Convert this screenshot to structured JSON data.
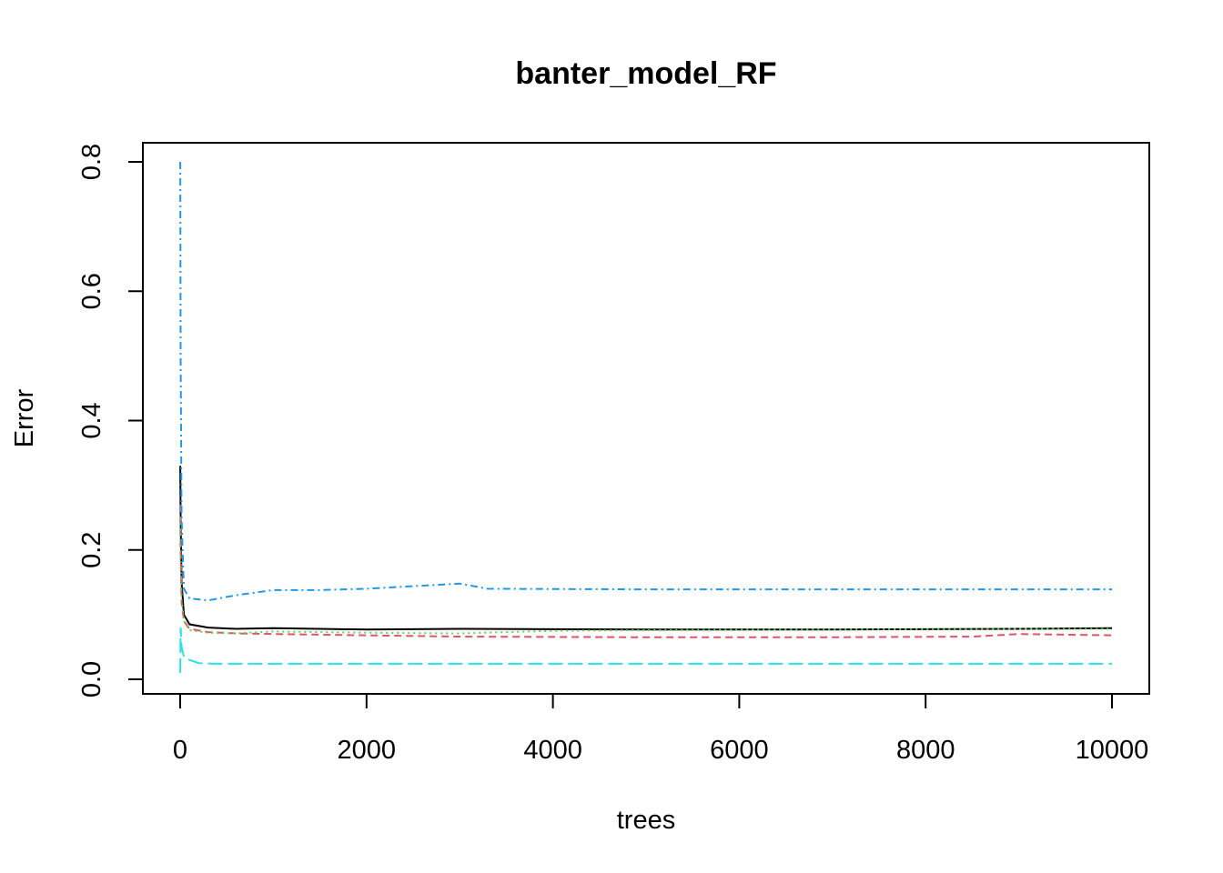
{
  "chart_data": {
    "type": "line",
    "title": "banter_model_RF",
    "xlabel": "trees",
    "ylabel": "Error",
    "xlim": [
      0,
      10000
    ],
    "ylim": [
      0,
      0.8
    ],
    "x_ticks": [
      0,
      2000,
      4000,
      6000,
      8000,
      10000
    ],
    "y_ticks": [
      0.0,
      0.2,
      0.4,
      0.6,
      0.8
    ],
    "x_tick_labels": [
      "0",
      "2000",
      "4000",
      "6000",
      "8000",
      "10000"
    ],
    "y_tick_labels": [
      "0.0",
      "0.2",
      "0.4",
      "0.6",
      "0.8"
    ],
    "grid": false,
    "legend": "none",
    "series": [
      {
        "color": "#000000",
        "dash": "",
        "points": [
          [
            1,
            0.33
          ],
          [
            5,
            0.25
          ],
          [
            15,
            0.15
          ],
          [
            40,
            0.1
          ],
          [
            100,
            0.085
          ],
          [
            300,
            0.08
          ],
          [
            600,
            0.078
          ],
          [
            1000,
            0.079
          ],
          [
            2000,
            0.077
          ],
          [
            3000,
            0.078
          ],
          [
            5000,
            0.077
          ],
          [
            7000,
            0.077
          ],
          [
            9000,
            0.078
          ],
          [
            10000,
            0.079
          ]
        ]
      },
      {
        "color": "#DF536B",
        "dash": "8,5",
        "points": [
          [
            1,
            0.27
          ],
          [
            5,
            0.2
          ],
          [
            15,
            0.12
          ],
          [
            40,
            0.09
          ],
          [
            100,
            0.078
          ],
          [
            300,
            0.073
          ],
          [
            600,
            0.071
          ],
          [
            1000,
            0.07
          ],
          [
            2000,
            0.068
          ],
          [
            3000,
            0.066
          ],
          [
            5000,
            0.065
          ],
          [
            7000,
            0.065
          ],
          [
            8500,
            0.066
          ],
          [
            9000,
            0.07
          ],
          [
            10000,
            0.068
          ]
        ]
      },
      {
        "color": "#61D04F",
        "dash": "2,4",
        "points": [
          [
            1,
            0.25
          ],
          [
            5,
            0.18
          ],
          [
            15,
            0.12
          ],
          [
            40,
            0.09
          ],
          [
            100,
            0.076
          ],
          [
            300,
            0.072
          ],
          [
            600,
            0.071
          ],
          [
            1000,
            0.074
          ],
          [
            2000,
            0.072
          ],
          [
            3000,
            0.071
          ],
          [
            4000,
            0.075
          ],
          [
            5000,
            0.076
          ],
          [
            7000,
            0.077
          ],
          [
            9000,
            0.078
          ],
          [
            10000,
            0.078
          ]
        ]
      },
      {
        "color": "#2297E6",
        "dash": "8,4,2,4",
        "points": [
          [
            1,
            0.8
          ],
          [
            5,
            0.5
          ],
          [
            15,
            0.25
          ],
          [
            40,
            0.14
          ],
          [
            100,
            0.125
          ],
          [
            300,
            0.122
          ],
          [
            600,
            0.13
          ],
          [
            1000,
            0.138
          ],
          [
            1500,
            0.138
          ],
          [
            2000,
            0.14
          ],
          [
            3000,
            0.148
          ],
          [
            3300,
            0.14
          ],
          [
            5000,
            0.139
          ],
          [
            7000,
            0.139
          ],
          [
            10000,
            0.139
          ]
        ]
      },
      {
        "color": "#28E2E5",
        "dash": "16,6",
        "points": [
          [
            1,
            0.01
          ],
          [
            5,
            0.08
          ],
          [
            15,
            0.05
          ],
          [
            40,
            0.035
          ],
          [
            100,
            0.03
          ],
          [
            200,
            0.025
          ],
          [
            400,
            0.024
          ],
          [
            1000,
            0.024
          ],
          [
            5000,
            0.024
          ],
          [
            10000,
            0.024
          ]
        ]
      }
    ]
  }
}
